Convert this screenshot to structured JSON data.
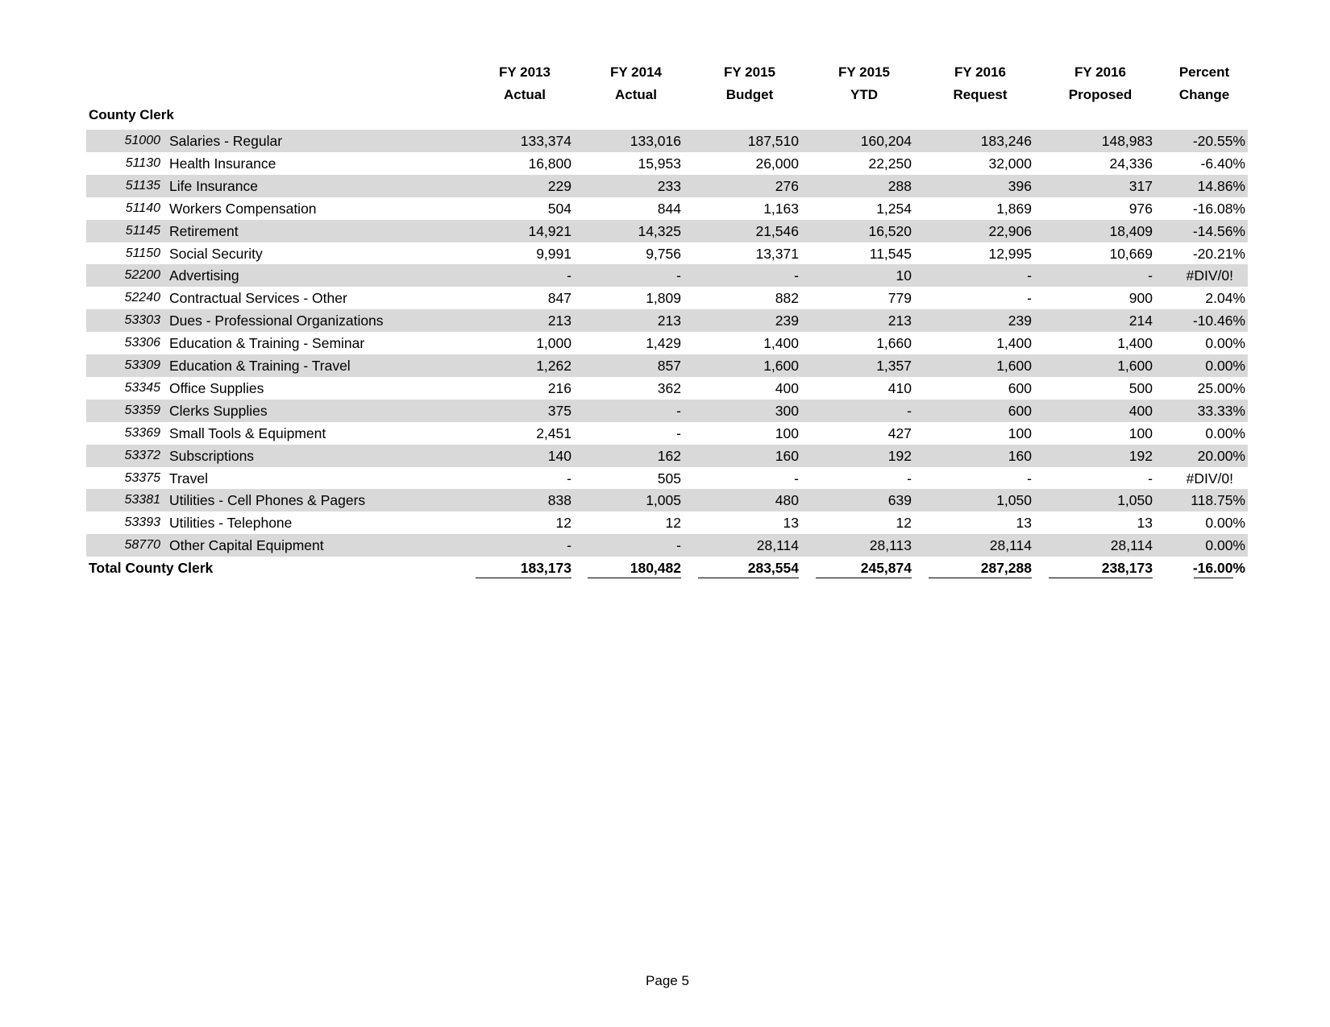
{
  "columns": [
    {
      "line1": "FY 2013",
      "line2": "Actual"
    },
    {
      "line1": "FY 2014",
      "line2": "Actual"
    },
    {
      "line1": "FY 2015",
      "line2": "Budget"
    },
    {
      "line1": "FY 2015",
      "line2": "YTD"
    },
    {
      "line1": "FY 2016",
      "line2": "Request"
    },
    {
      "line1": "FY 2016",
      "line2": "Proposed"
    },
    {
      "line1": "Percent",
      "line2": "Change"
    }
  ],
  "section_title": "County Clerk",
  "rows": [
    {
      "code": "51000",
      "desc": "Salaries - Regular",
      "values": [
        "133,374",
        "133,016",
        "187,510",
        "160,204",
        "183,246",
        "148,983",
        "-20.55%"
      ]
    },
    {
      "code": "51130",
      "desc": "Health Insurance",
      "values": [
        "16,800",
        "15,953",
        "26,000",
        "22,250",
        "32,000",
        "24,336",
        "-6.40%"
      ]
    },
    {
      "code": "51135",
      "desc": "Life Insurance",
      "values": [
        "229",
        "233",
        "276",
        "288",
        "396",
        "317",
        "14.86%"
      ]
    },
    {
      "code": "51140",
      "desc": "Workers Compensation",
      "values": [
        "504",
        "844",
        "1,163",
        "1,254",
        "1,869",
        "976",
        "-16.08%"
      ]
    },
    {
      "code": "51145",
      "desc": "Retirement",
      "values": [
        "14,921",
        "14,325",
        "21,546",
        "16,520",
        "22,906",
        "18,409",
        "-14.56%"
      ]
    },
    {
      "code": "51150",
      "desc": "Social Security",
      "values": [
        "9,991",
        "9,756",
        "13,371",
        "11,545",
        "12,995",
        "10,669",
        "-20.21%"
      ]
    },
    {
      "code": "52200",
      "desc": "Advertising",
      "values": [
        "-",
        "-",
        "-",
        "10",
        "-",
        "-",
        "#DIV/0!"
      ]
    },
    {
      "code": "52240",
      "desc": "Contractual Services - Other",
      "values": [
        "847",
        "1,809",
        "882",
        "779",
        "-",
        "900",
        "2.04%"
      ]
    },
    {
      "code": "53303",
      "desc": "Dues - Professional Organizations",
      "values": [
        "213",
        "213",
        "239",
        "213",
        "239",
        "214",
        "-10.46%"
      ]
    },
    {
      "code": "53306",
      "desc": "Education & Training - Seminar",
      "values": [
        "1,000",
        "1,429",
        "1,400",
        "1,660",
        "1,400",
        "1,400",
        "0.00%"
      ]
    },
    {
      "code": "53309",
      "desc": "Education & Training - Travel",
      "values": [
        "1,262",
        "857",
        "1,600",
        "1,357",
        "1,600",
        "1,600",
        "0.00%"
      ]
    },
    {
      "code": "53345",
      "desc": "Office Supplies",
      "values": [
        "216",
        "362",
        "400",
        "410",
        "600",
        "500",
        "25.00%"
      ]
    },
    {
      "code": "53359",
      "desc": "Clerks Supplies",
      "values": [
        "375",
        "-",
        "300",
        "-",
        "600",
        "400",
        "33.33%"
      ]
    },
    {
      "code": "53369",
      "desc": "Small Tools & Equipment",
      "values": [
        "2,451",
        "-",
        "100",
        "427",
        "100",
        "100",
        "0.00%"
      ]
    },
    {
      "code": "53372",
      "desc": "Subscriptions",
      "values": [
        "140",
        "162",
        "160",
        "192",
        "160",
        "192",
        "20.00%"
      ]
    },
    {
      "code": "53375",
      "desc": "Travel",
      "values": [
        "-",
        "505",
        "-",
        "-",
        "-",
        "-",
        "#DIV/0!"
      ]
    },
    {
      "code": "53381",
      "desc": "Utilities - Cell Phones & Pagers",
      "values": [
        "838",
        "1,005",
        "480",
        "639",
        "1,050",
        "1,050",
        "118.75%"
      ]
    },
    {
      "code": "53393",
      "desc": "Utilities - Telephone",
      "values": [
        "12",
        "12",
        "13",
        "12",
        "13",
        "13",
        "0.00%"
      ]
    },
    {
      "code": "58770",
      "desc": "Other Capital Equipment",
      "values": [
        "-",
        "-",
        "28,114",
        "28,113",
        "28,114",
        "28,114",
        "0.00%"
      ]
    }
  ],
  "total": {
    "label": "Total County Clerk",
    "values": [
      "183,173",
      "180,482",
      "283,554",
      "245,874",
      "287,288",
      "238,173",
      "-16.00%"
    ]
  },
  "footer": {
    "page": "Page 5"
  },
  "colors": {
    "row_shade": "#d9d9d9"
  }
}
